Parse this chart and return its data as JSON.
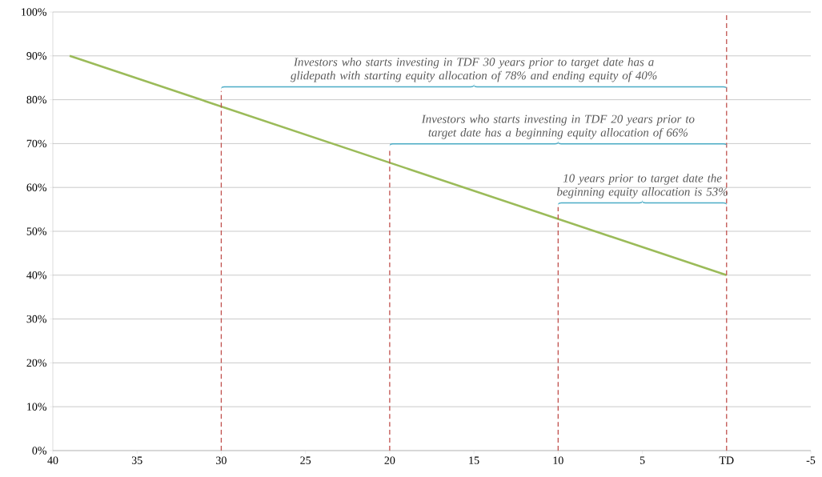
{
  "chart_data": {
    "type": "line",
    "series": [
      {
        "color": "#9bbb59",
        "x": [
          39,
          0
        ],
        "values": [
          90,
          40
        ]
      }
    ],
    "ref_lines": [
      {
        "axis": "x",
        "value": 30,
        "color": "#c0504d",
        "line_style": "dashed"
      },
      {
        "axis": "x",
        "value": 20,
        "color": "#c0504d",
        "line_style": "dashed"
      },
      {
        "axis": "x",
        "value": 10,
        "color": "#c0504d",
        "line_style": "dashed"
      },
      {
        "axis": "x",
        "value": 0,
        "color": "#c0504d",
        "line_style": "dashed"
      }
    ],
    "xlim": [
      40,
      -5
    ],
    "xticks": [
      40,
      35,
      30,
      25,
      20,
      15,
      10,
      5,
      {
        "value": 0,
        "label": "TD"
      },
      -5
    ],
    "ylim": [
      0,
      100
    ],
    "yticks": [
      {
        "value": 0,
        "label": "0%"
      },
      {
        "value": 10,
        "label": "10%"
      },
      {
        "value": 20,
        "label": "20%"
      },
      {
        "value": 30,
        "label": "30%"
      },
      {
        "value": 40,
        "label": "40%"
      },
      {
        "value": 50,
        "label": "50%"
      },
      {
        "value": 60,
        "label": "60%"
      },
      {
        "value": 70,
        "label": "70%"
      },
      {
        "value": 80,
        "label": "80%"
      },
      {
        "value": 90,
        "label": "90%"
      },
      {
        "value": 100,
        "label": "100%"
      }
    ],
    "grid": "y",
    "marker": "none",
    "line_style": "solid",
    "annotations": [
      "Investors who starts investing in TDF 30 years prior to target date has a glidepath with starting equity allocation of 78% and ending equity of 40%",
      "Investors who starts investing in TDF 20 years prior to target date has a beginning  equity allocation of 66%",
      "10 years prior to target date  the beginning  equity allocation is 53%"
    ]
  }
}
